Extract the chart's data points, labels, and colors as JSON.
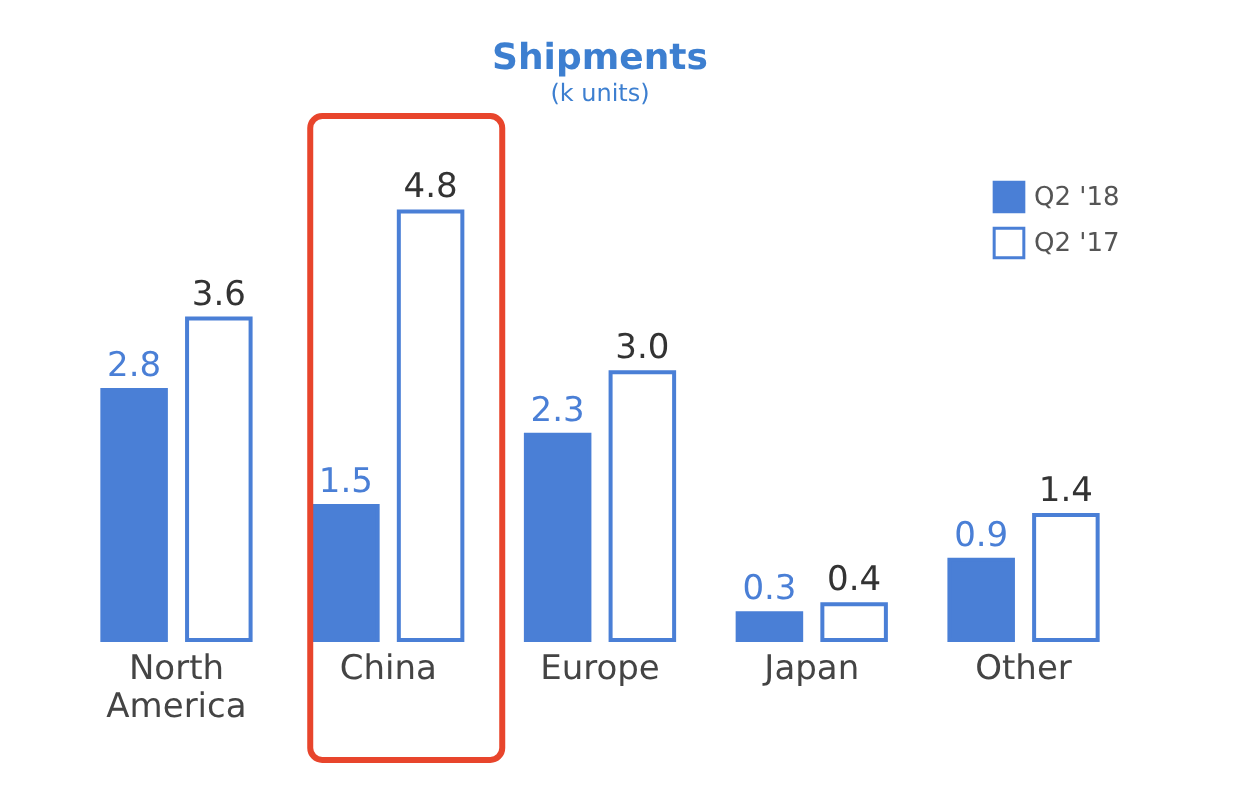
{
  "chart_data": {
    "type": "bar",
    "title": "Shipments",
    "subtitle": "(k units)",
    "categories": [
      "North America",
      "China",
      "Europe",
      "Japan",
      "Other"
    ],
    "series": [
      {
        "name": "Q2 '18",
        "color": "#4a7fd6",
        "values": [
          2.8,
          1.5,
          2.3,
          0.3,
          0.9
        ],
        "value_labels": [
          "2.8",
          "1.5",
          "2.3",
          "0.3",
          "0.9"
        ]
      },
      {
        "name": "Q2 '17",
        "color": "#ffffff",
        "values": [
          3.6,
          4.8,
          3.0,
          0.4,
          1.4
        ],
        "value_labels": [
          "3.6",
          "4.8",
          "3.0",
          "0.4",
          "1.4"
        ]
      }
    ],
    "legend": "top right",
    "tick_labels": "x"
  }
}
